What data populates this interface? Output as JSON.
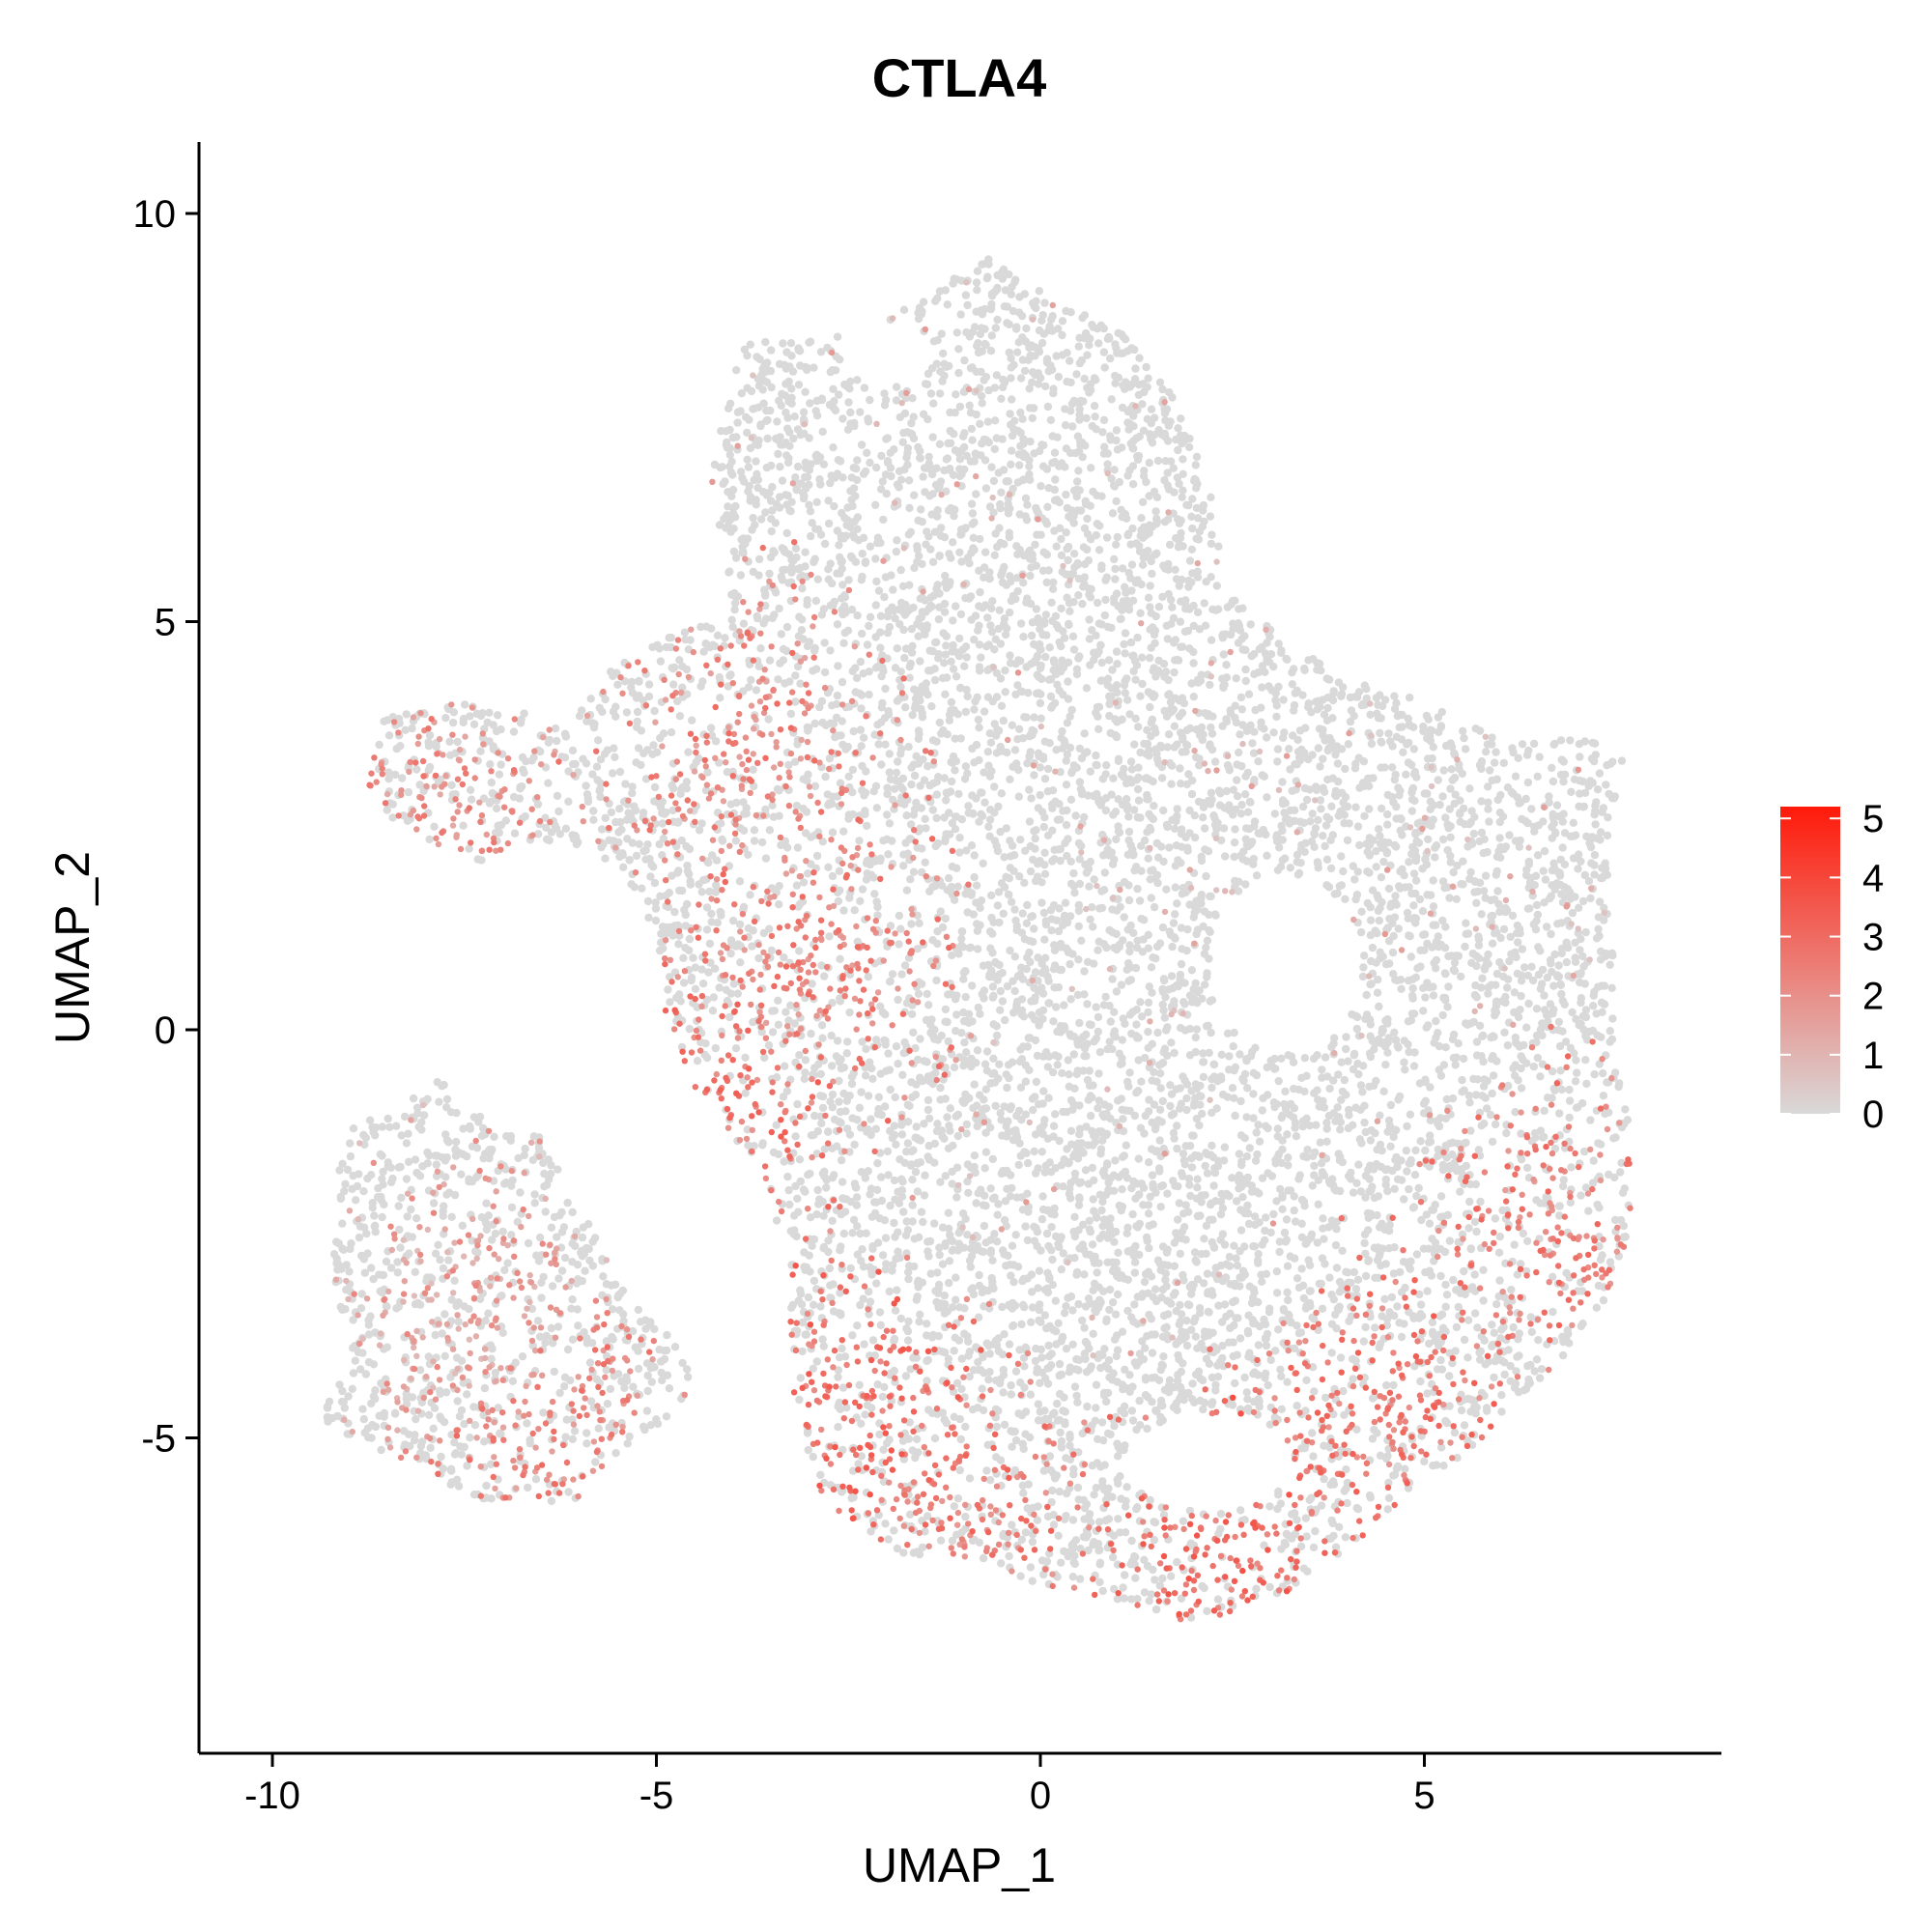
{
  "chart_data": {
    "type": "scatter",
    "title": "CTLA4",
    "xlabel": "UMAP_1",
    "ylabel": "UMAP_2",
    "xlim": [
      -11,
      8.9
    ],
    "ylim": [
      -8.9,
      10.9
    ],
    "xticks": [
      -10,
      -5,
      0,
      5
    ],
    "yticks": [
      -5,
      0,
      5,
      10
    ],
    "xtick_labels": [
      "-10",
      "-5",
      "0",
      "5"
    ],
    "ytick_labels": [
      "-5",
      "0",
      "5",
      "10"
    ],
    "grid": false,
    "legend_placement": "right",
    "colorbar": {
      "min": 0,
      "max": 5.2,
      "ticks": [
        0,
        1,
        2,
        3,
        4,
        5
      ],
      "tick_labels": [
        "0",
        "1",
        "2",
        "3",
        "4",
        "5"
      ],
      "low_color": "#d9d9d9",
      "high_color": "#ff1a0a"
    },
    "expression_regions": [
      {
        "cx": -6.5,
        "cy": -5.0,
        "level": 2.2
      },
      {
        "cx": -7.5,
        "cy": -3.5,
        "level": 1.5
      },
      {
        "cx": -4.3,
        "cy": -0.8,
        "level": 2.6
      },
      {
        "cx": -3.0,
        "cy": 1.0,
        "level": 2.3
      },
      {
        "cx": -2.5,
        "cy": -4.8,
        "level": 2.8
      },
      {
        "cx": -1.2,
        "cy": -6.0,
        "level": 2.5
      },
      {
        "cx": 2.5,
        "cy": -6.3,
        "level": 2.9
      },
      {
        "cx": 4.5,
        "cy": -4.8,
        "level": 2.6
      },
      {
        "cx": 6.8,
        "cy": -2.5,
        "level": 2.4
      },
      {
        "cx": -7.8,
        "cy": 2.5,
        "level": 2.0
      },
      {
        "cx": -3.8,
        "cy": 3.5,
        "level": 2.2
      }
    ]
  }
}
